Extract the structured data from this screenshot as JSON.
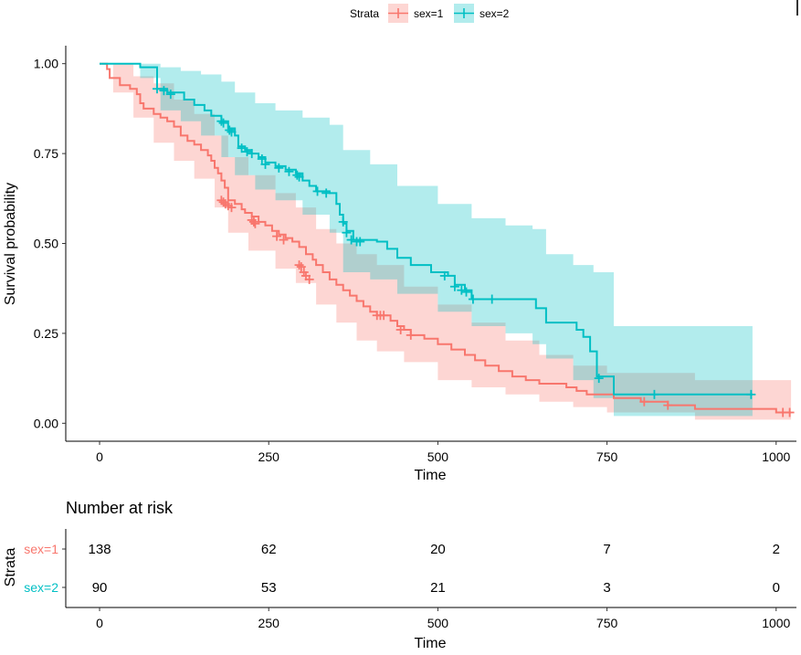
{
  "colors": {
    "sex1": "#F8766D",
    "sex2": "#00BFC4",
    "axis": "#000000",
    "tick": "#333333"
  },
  "chart_data": {
    "type": "line",
    "subtype": "kaplan-meier",
    "legend": {
      "title": "Strata",
      "position": "top",
      "entries": [
        "sex=1",
        "sex=2"
      ]
    },
    "xlabel": "Time",
    "ylabel": "Survival probability",
    "xlim": [
      -50,
      1030
    ],
    "ylim": [
      -0.05,
      1.05
    ],
    "x_ticks": [
      0,
      250,
      500,
      750,
      1000
    ],
    "y_ticks": [
      0.0,
      0.25,
      0.5,
      0.75,
      1.0
    ],
    "x_tick_labels": [
      "0",
      "250",
      "500",
      "750",
      "1000"
    ],
    "y_tick_labels": [
      "0.00",
      "0.25",
      "0.50",
      "0.75",
      "1.00"
    ],
    "series": [
      {
        "name": "sex=1",
        "color": "#F8766D",
        "steps": [
          [
            0,
            1.0
          ],
          [
            11,
            0.985
          ],
          [
            15,
            0.96
          ],
          [
            30,
            0.94
          ],
          [
            45,
            0.93
          ],
          [
            55,
            0.915
          ],
          [
            60,
            0.89
          ],
          [
            65,
            0.875
          ],
          [
            80,
            0.86
          ],
          [
            90,
            0.85
          ],
          [
            100,
            0.84
          ],
          [
            110,
            0.825
          ],
          [
            120,
            0.8
          ],
          [
            130,
            0.785
          ],
          [
            140,
            0.775
          ],
          [
            150,
            0.76
          ],
          [
            160,
            0.745
          ],
          [
            165,
            0.73
          ],
          [
            170,
            0.71
          ],
          [
            175,
            0.695
          ],
          [
            180,
            0.675
          ],
          [
            185,
            0.655
          ],
          [
            190,
            0.62
          ],
          [
            200,
            0.61
          ],
          [
            210,
            0.595
          ],
          [
            215,
            0.585
          ],
          [
            225,
            0.575
          ],
          [
            235,
            0.56
          ],
          [
            245,
            0.55
          ],
          [
            255,
            0.535
          ],
          [
            265,
            0.525
          ],
          [
            275,
            0.515
          ],
          [
            285,
            0.505
          ],
          [
            295,
            0.49
          ],
          [
            305,
            0.47
          ],
          [
            315,
            0.455
          ],
          [
            320,
            0.44
          ],
          [
            330,
            0.42
          ],
          [
            340,
            0.4
          ],
          [
            350,
            0.385
          ],
          [
            360,
            0.37
          ],
          [
            370,
            0.355
          ],
          [
            380,
            0.34
          ],
          [
            390,
            0.325
          ],
          [
            400,
            0.31
          ],
          [
            410,
            0.3
          ],
          [
            430,
            0.285
          ],
          [
            440,
            0.27
          ],
          [
            450,
            0.26
          ],
          [
            460,
            0.245
          ],
          [
            480,
            0.235
          ],
          [
            500,
            0.22
          ],
          [
            520,
            0.205
          ],
          [
            540,
            0.19
          ],
          [
            555,
            0.175
          ],
          [
            570,
            0.16
          ],
          [
            590,
            0.145
          ],
          [
            610,
            0.13
          ],
          [
            630,
            0.12
          ],
          [
            650,
            0.11
          ],
          [
            690,
            0.1
          ],
          [
            705,
            0.09
          ],
          [
            720,
            0.08
          ],
          [
            760,
            0.07
          ],
          [
            800,
            0.06
          ],
          [
            840,
            0.05
          ],
          [
            880,
            0.04
          ],
          [
            1000,
            0.03
          ],
          [
            1022,
            0.03
          ]
        ],
        "censored": [
          [
            180,
            0.62
          ],
          [
            183,
            0.615
          ],
          [
            186,
            0.61
          ],
          [
            190,
            0.605
          ],
          [
            195,
            0.6
          ],
          [
            225,
            0.565
          ],
          [
            228,
            0.56
          ],
          [
            230,
            0.555
          ],
          [
            262,
            0.52
          ],
          [
            272,
            0.51
          ],
          [
            295,
            0.44
          ],
          [
            298,
            0.435
          ],
          [
            302,
            0.42
          ],
          [
            305,
            0.41
          ],
          [
            310,
            0.4
          ],
          [
            410,
            0.3
          ],
          [
            415,
            0.3
          ],
          [
            420,
            0.3
          ],
          [
            445,
            0.26
          ],
          [
            460,
            0.245
          ],
          [
            805,
            0.06
          ],
          [
            840,
            0.05
          ],
          [
            1010,
            0.03
          ],
          [
            1020,
            0.03
          ]
        ],
        "ci_upper": [
          [
            0,
            1.0
          ],
          [
            20,
            1.0
          ],
          [
            50,
            0.965
          ],
          [
            80,
            0.945
          ],
          [
            110,
            0.9
          ],
          [
            140,
            0.86
          ],
          [
            170,
            0.8
          ],
          [
            190,
            0.74
          ],
          [
            220,
            0.69
          ],
          [
            260,
            0.64
          ],
          [
            290,
            0.6
          ],
          [
            320,
            0.54
          ],
          [
            350,
            0.5
          ],
          [
            380,
            0.47
          ],
          [
            410,
            0.44
          ],
          [
            450,
            0.38
          ],
          [
            500,
            0.33
          ],
          [
            550,
            0.28
          ],
          [
            600,
            0.23
          ],
          [
            650,
            0.19
          ],
          [
            700,
            0.16
          ],
          [
            750,
            0.14
          ],
          [
            880,
            0.12
          ],
          [
            1022,
            0.12
          ]
        ],
        "ci_lower": [
          [
            0,
            1.0
          ],
          [
            20,
            0.92
          ],
          [
            50,
            0.85
          ],
          [
            80,
            0.78
          ],
          [
            110,
            0.73
          ],
          [
            140,
            0.68
          ],
          [
            170,
            0.6
          ],
          [
            190,
            0.53
          ],
          [
            220,
            0.48
          ],
          [
            260,
            0.43
          ],
          [
            290,
            0.39
          ],
          [
            320,
            0.33
          ],
          [
            350,
            0.28
          ],
          [
            380,
            0.23
          ],
          [
            410,
            0.2
          ],
          [
            450,
            0.17
          ],
          [
            500,
            0.12
          ],
          [
            550,
            0.1
          ],
          [
            600,
            0.08
          ],
          [
            650,
            0.06
          ],
          [
            700,
            0.045
          ],
          [
            750,
            0.03
          ],
          [
            880,
            0.01
          ],
          [
            1022,
            0.01
          ]
        ]
      },
      {
        "name": "sex=2",
        "color": "#00BFC4",
        "steps": [
          [
            0,
            1.0
          ],
          [
            60,
            0.99
          ],
          [
            85,
            0.93
          ],
          [
            100,
            0.92
          ],
          [
            125,
            0.9
          ],
          [
            140,
            0.885
          ],
          [
            155,
            0.87
          ],
          [
            165,
            0.855
          ],
          [
            180,
            0.84
          ],
          [
            190,
            0.82
          ],
          [
            200,
            0.8
          ],
          [
            205,
            0.77
          ],
          [
            215,
            0.76
          ],
          [
            225,
            0.75
          ],
          [
            235,
            0.74
          ],
          [
            245,
            0.725
          ],
          [
            260,
            0.715
          ],
          [
            275,
            0.705
          ],
          [
            290,
            0.695
          ],
          [
            300,
            0.675
          ],
          [
            310,
            0.66
          ],
          [
            320,
            0.645
          ],
          [
            340,
            0.64
          ],
          [
            350,
            0.61
          ],
          [
            355,
            0.58
          ],
          [
            360,
            0.555
          ],
          [
            365,
            0.535
          ],
          [
            375,
            0.51
          ],
          [
            410,
            0.505
          ],
          [
            425,
            0.485
          ],
          [
            440,
            0.46
          ],
          [
            460,
            0.44
          ],
          [
            490,
            0.42
          ],
          [
            515,
            0.41
          ],
          [
            525,
            0.385
          ],
          [
            540,
            0.37
          ],
          [
            550,
            0.345
          ],
          [
            590,
            0.345
          ],
          [
            640,
            0.345
          ],
          [
            645,
            0.32
          ],
          [
            660,
            0.28
          ],
          [
            705,
            0.26
          ],
          [
            715,
            0.24
          ],
          [
            725,
            0.2
          ],
          [
            735,
            0.13
          ],
          [
            760,
            0.08
          ],
          [
            965,
            0.08
          ]
        ],
        "censored": [
          [
            85,
            0.93
          ],
          [
            95,
            0.925
          ],
          [
            105,
            0.915
          ],
          [
            180,
            0.84
          ],
          [
            183,
            0.835
          ],
          [
            192,
            0.815
          ],
          [
            195,
            0.81
          ],
          [
            210,
            0.765
          ],
          [
            218,
            0.755
          ],
          [
            225,
            0.75
          ],
          [
            240,
            0.735
          ],
          [
            245,
            0.72
          ],
          [
            265,
            0.71
          ],
          [
            280,
            0.7
          ],
          [
            292,
            0.69
          ],
          [
            295,
            0.685
          ],
          [
            322,
            0.645
          ],
          [
            335,
            0.64
          ],
          [
            360,
            0.56
          ],
          [
            365,
            0.53
          ],
          [
            372,
            0.51
          ],
          [
            380,
            0.505
          ],
          [
            385,
            0.505
          ],
          [
            510,
            0.41
          ],
          [
            525,
            0.38
          ],
          [
            535,
            0.37
          ],
          [
            542,
            0.365
          ],
          [
            552,
            0.345
          ],
          [
            580,
            0.345
          ],
          [
            738,
            0.125
          ],
          [
            820,
            0.08
          ],
          [
            963,
            0.08
          ]
        ],
        "ci_upper": [
          [
            0,
            1.0
          ],
          [
            60,
            1.0
          ],
          [
            90,
            0.99
          ],
          [
            120,
            0.98
          ],
          [
            150,
            0.97
          ],
          [
            180,
            0.95
          ],
          [
            200,
            0.92
          ],
          [
            230,
            0.89
          ],
          [
            260,
            0.87
          ],
          [
            300,
            0.85
          ],
          [
            340,
            0.83
          ],
          [
            360,
            0.76
          ],
          [
            400,
            0.72
          ],
          [
            440,
            0.66
          ],
          [
            500,
            0.61
          ],
          [
            550,
            0.57
          ],
          [
            600,
            0.55
          ],
          [
            640,
            0.54
          ],
          [
            660,
            0.47
          ],
          [
            700,
            0.44
          ],
          [
            730,
            0.42
          ],
          [
            760,
            0.27
          ],
          [
            965,
            0.27
          ]
        ],
        "ci_lower": [
          [
            0,
            1.0
          ],
          [
            60,
            0.96
          ],
          [
            90,
            0.87
          ],
          [
            120,
            0.84
          ],
          [
            150,
            0.8
          ],
          [
            180,
            0.74
          ],
          [
            200,
            0.69
          ],
          [
            230,
            0.65
          ],
          [
            260,
            0.62
          ],
          [
            300,
            0.58
          ],
          [
            340,
            0.53
          ],
          [
            360,
            0.42
          ],
          [
            400,
            0.4
          ],
          [
            440,
            0.36
          ],
          [
            500,
            0.31
          ],
          [
            550,
            0.27
          ],
          [
            600,
            0.25
          ],
          [
            640,
            0.22
          ],
          [
            660,
            0.18
          ],
          [
            700,
            0.12
          ],
          [
            730,
            0.07
          ],
          [
            760,
            0.02
          ],
          [
            965,
            0.02
          ]
        ]
      }
    ],
    "risk_table": {
      "title": "Number at risk",
      "ylabel": "Strata",
      "xlabel": "Time",
      "times": [
        0,
        250,
        500,
        750,
        1000
      ],
      "time_labels": [
        "0",
        "250",
        "500",
        "750",
        "1000"
      ],
      "rows": [
        {
          "label": "sex=1",
          "counts": [
            "138",
            "62",
            "20",
            "7",
            "2"
          ]
        },
        {
          "label": "sex=2",
          "counts": [
            "90",
            "53",
            "21",
            "3",
            "0"
          ]
        }
      ]
    }
  }
}
